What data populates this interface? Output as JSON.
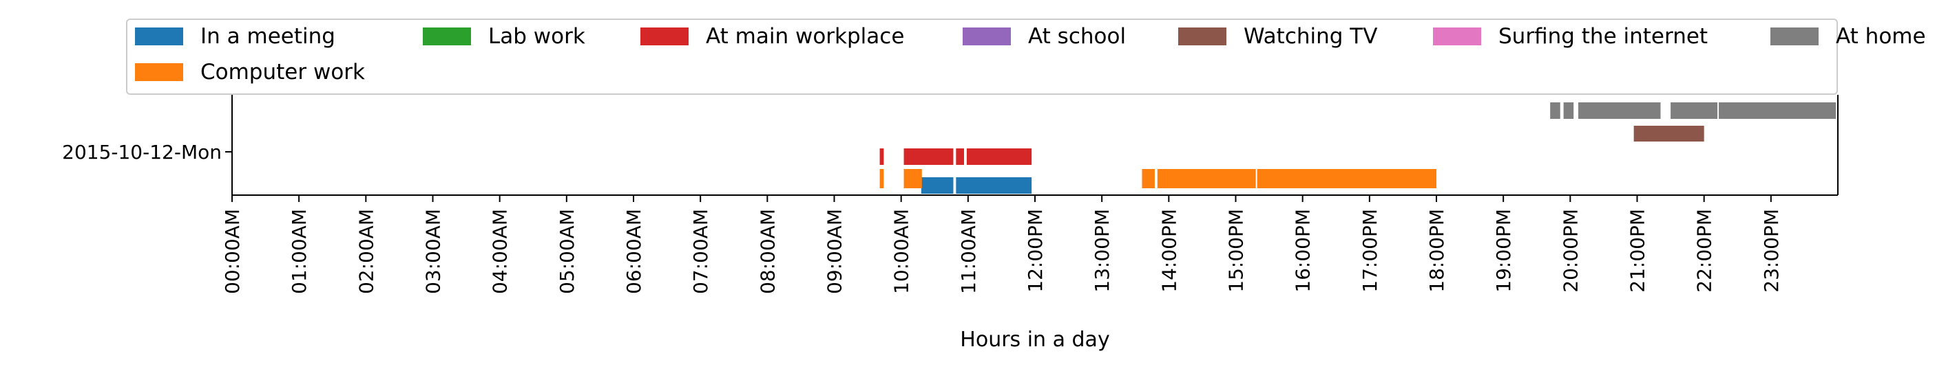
{
  "chart_data": {
    "type": "timeline",
    "xlabel": "Hours in a day",
    "xlim": [
      0,
      24
    ],
    "x_ticks": [
      {
        "value": 0,
        "label": "00:00AM"
      },
      {
        "value": 1,
        "label": "01:00AM"
      },
      {
        "value": 2,
        "label": "02:00AM"
      },
      {
        "value": 3,
        "label": "03:00AM"
      },
      {
        "value": 4,
        "label": "04:00AM"
      },
      {
        "value": 5,
        "label": "05:00AM"
      },
      {
        "value": 6,
        "label": "06:00AM"
      },
      {
        "value": 7,
        "label": "07:00AM"
      },
      {
        "value": 8,
        "label": "08:00AM"
      },
      {
        "value": 9,
        "label": "09:00AM"
      },
      {
        "value": 10,
        "label": "10:00AM"
      },
      {
        "value": 11,
        "label": "11:00AM"
      },
      {
        "value": 12,
        "label": "12:00PM"
      },
      {
        "value": 13,
        "label": "13:00PM"
      },
      {
        "value": 14,
        "label": "14:00PM"
      },
      {
        "value": 15,
        "label": "15:00PM"
      },
      {
        "value": 16,
        "label": "16:00PM"
      },
      {
        "value": 17,
        "label": "17:00PM"
      },
      {
        "value": 18,
        "label": "18:00PM"
      },
      {
        "value": 19,
        "label": "19:00PM"
      },
      {
        "value": 20,
        "label": "20:00PM"
      },
      {
        "value": 21,
        "label": "21:00PM"
      },
      {
        "value": 22,
        "label": "22:00PM"
      },
      {
        "value": 23,
        "label": "23:00PM"
      }
    ],
    "day_label": "2015-10-12-Mon",
    "legend_position": "top",
    "legend": [
      {
        "name": "In a meeting",
        "color": "#1f77b4"
      },
      {
        "name": "Lab work",
        "color": "#2ca02c"
      },
      {
        "name": "At main workplace",
        "color": "#d62728"
      },
      {
        "name": "At school",
        "color": "#9467bd"
      },
      {
        "name": "Watching TV",
        "color": "#8c564b"
      },
      {
        "name": "Surfing the internet",
        "color": "#e377c2"
      },
      {
        "name": "At home",
        "color": "#7f7f7f"
      },
      {
        "name": "Computer work",
        "color": "#ff7f0e"
      }
    ],
    "series": [
      {
        "name": "In a meeting",
        "color": "#1f77b4",
        "intervals": [
          [
            10.3,
            10.78
          ],
          [
            10.82,
            11.95
          ]
        ]
      },
      {
        "name": "Computer work",
        "color": "#ff7f0e",
        "intervals": [
          [
            9.68,
            9.74
          ],
          [
            10.04,
            10.31
          ],
          [
            13.6,
            13.79
          ],
          [
            13.83,
            15.3
          ],
          [
            15.32,
            18.0
          ]
        ]
      },
      {
        "name": "At main workplace",
        "color": "#d62728",
        "intervals": [
          [
            9.68,
            9.74
          ],
          [
            10.04,
            10.78
          ],
          [
            10.82,
            10.94
          ],
          [
            10.98,
            11.95
          ]
        ]
      },
      {
        "name": "Watching TV",
        "color": "#8c564b",
        "intervals": [
          [
            20.95,
            22.0
          ]
        ]
      },
      {
        "name": "At home",
        "color": "#7f7f7f",
        "intervals": [
          [
            19.7,
            19.85
          ],
          [
            19.9,
            20.05
          ],
          [
            20.12,
            21.35
          ],
          [
            21.5,
            22.2
          ],
          [
            22.22,
            23.97
          ]
        ]
      }
    ]
  }
}
